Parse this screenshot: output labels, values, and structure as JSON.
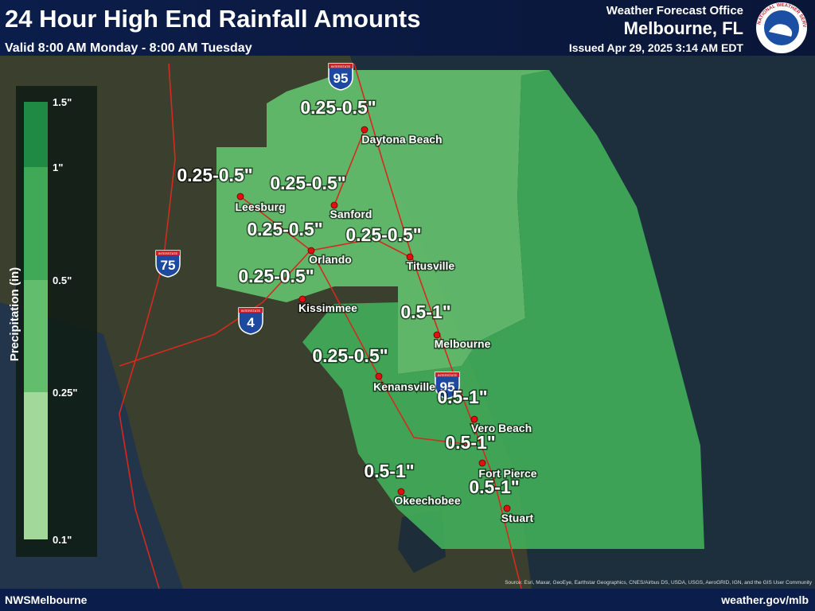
{
  "header": {
    "title": "24 Hour High End Rainfall Amounts",
    "subtitle": "Valid 8:00 AM Monday - 8:00 AM Tuesday",
    "office": "Weather Forecast Office",
    "office_location": "Melbourne, FL",
    "issued": "Issued Apr 29, 2025 3:14 AM EDT",
    "logo_text": "NATIONAL WEATHER SERVICE"
  },
  "legend": {
    "title": "Precipitation (in)",
    "labels": [
      "1.5\"",
      "1\"",
      "0.5\"",
      "0.25\"",
      "0.1\""
    ],
    "colors": [
      "#1f8a43",
      "#40a957",
      "#62bd6c",
      "#a2d99a"
    ]
  },
  "cities": [
    {
      "name": "Daytona Beach",
      "amount": "0.25-0.5\""
    },
    {
      "name": "Leesburg",
      "amount": "0.25-0.5\""
    },
    {
      "name": "Sanford",
      "amount": "0.25-0.5\""
    },
    {
      "name": "Orlando",
      "amount": "0.25-0.5\""
    },
    {
      "name": "Titusville",
      "amount": "0.25-0.5\""
    },
    {
      "name": "Kissimmee",
      "amount": "0.25-0.5\""
    },
    {
      "name": "Melbourne",
      "amount": "0.5-1\""
    },
    {
      "name": "Kenansville",
      "amount": "0.25-0.5\""
    },
    {
      "name": "Vero Beach",
      "amount": "0.5-1\""
    },
    {
      "name": "Fort Pierce",
      "amount": "0.5-1\""
    },
    {
      "name": "Okeechobee",
      "amount": "0.5-1\""
    },
    {
      "name": "Stuart",
      "amount": "0.5-1\""
    }
  ],
  "shields": {
    "word": "INTERSTATE",
    "numbers": [
      "95",
      "75",
      "4",
      "95"
    ]
  },
  "footer": {
    "left": "NWSMelbourne",
    "right": "weather.gov/mlb",
    "source": "Source: Esri, Maxar, GeoEye, Earthstar Geographics, CNES/Airbus DS, USDA, USGS, AeroGRID, IGN, and the GIS User Community"
  }
}
